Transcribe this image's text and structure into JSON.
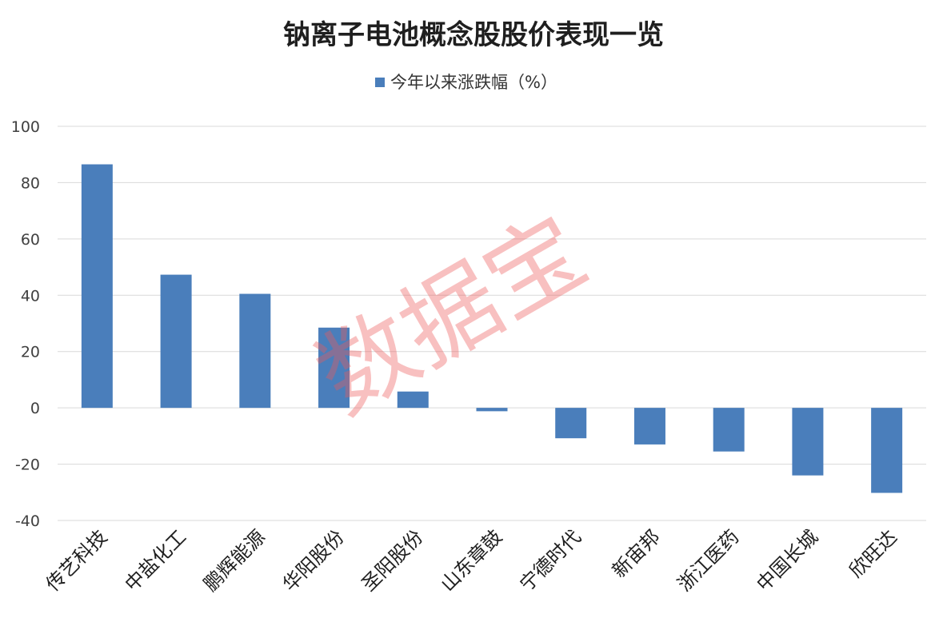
{
  "chart_data": {
    "type": "bar",
    "title": "钠离子电池概念股股价表现一览",
    "legend": [
      "今年以来涨跌幅（%）"
    ],
    "legend_position": "top-center",
    "grid": true,
    "ylim": [
      -40,
      100
    ],
    "yticks": [
      "100",
      "80",
      "60",
      "40",
      "20",
      "0",
      "-20",
      "-40"
    ],
    "categories": [
      "传艺科技",
      "中盐化工",
      "鹏辉能源",
      "华阳股份",
      "圣阳股份",
      "山东章鼓",
      "宁德时代",
      "新宙邦",
      "浙江医药",
      "中国长城",
      "欣旺达"
    ],
    "series": [
      {
        "name": "今年以来涨跌幅（%）",
        "values": [
          86.5,
          47.3,
          40.5,
          28.5,
          5.8,
          -1.2,
          -10.8,
          -13.0,
          -15.5,
          -24.0,
          -30.2
        ]
      }
    ],
    "bar_color": "#4a7ebb",
    "watermark": "数据宝"
  }
}
